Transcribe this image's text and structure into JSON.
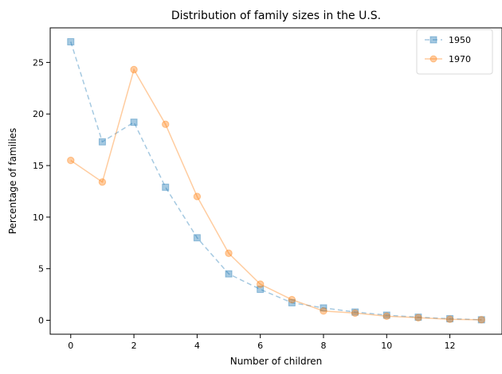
{
  "chart_data": {
    "type": "line",
    "title": "Distribution of family sizes in the U.S.",
    "xlabel": "Number of children",
    "ylabel": "Percentage of families",
    "x": [
      0,
      1,
      2,
      3,
      4,
      5,
      6,
      7,
      8,
      9,
      10,
      11,
      12,
      13
    ],
    "xlim": [
      -0.65,
      13.65
    ],
    "ylim": [
      -1.35,
      28.35
    ],
    "xticks": [
      0,
      2,
      4,
      6,
      8,
      10,
      12
    ],
    "yticks": [
      0,
      5,
      10,
      15,
      20,
      25
    ],
    "grid": false,
    "legend_position": "top-right",
    "series": [
      {
        "name": "1950",
        "values": [
          27.0,
          17.3,
          19.2,
          12.9,
          8.0,
          4.5,
          3.0,
          1.7,
          1.2,
          0.8,
          0.5,
          0.3,
          0.15,
          0.05
        ],
        "color": "#1f77b4",
        "linestyle": "dashed",
        "marker": "square",
        "alpha": 0.4
      },
      {
        "name": "1970",
        "values": [
          15.5,
          13.4,
          24.3,
          19.0,
          12.0,
          6.5,
          3.5,
          2.0,
          0.9,
          0.7,
          0.4,
          0.25,
          0.1,
          0.05
        ],
        "color": "#ff7f0e",
        "linestyle": "solid",
        "marker": "circle",
        "alpha": 0.4
      }
    ]
  }
}
